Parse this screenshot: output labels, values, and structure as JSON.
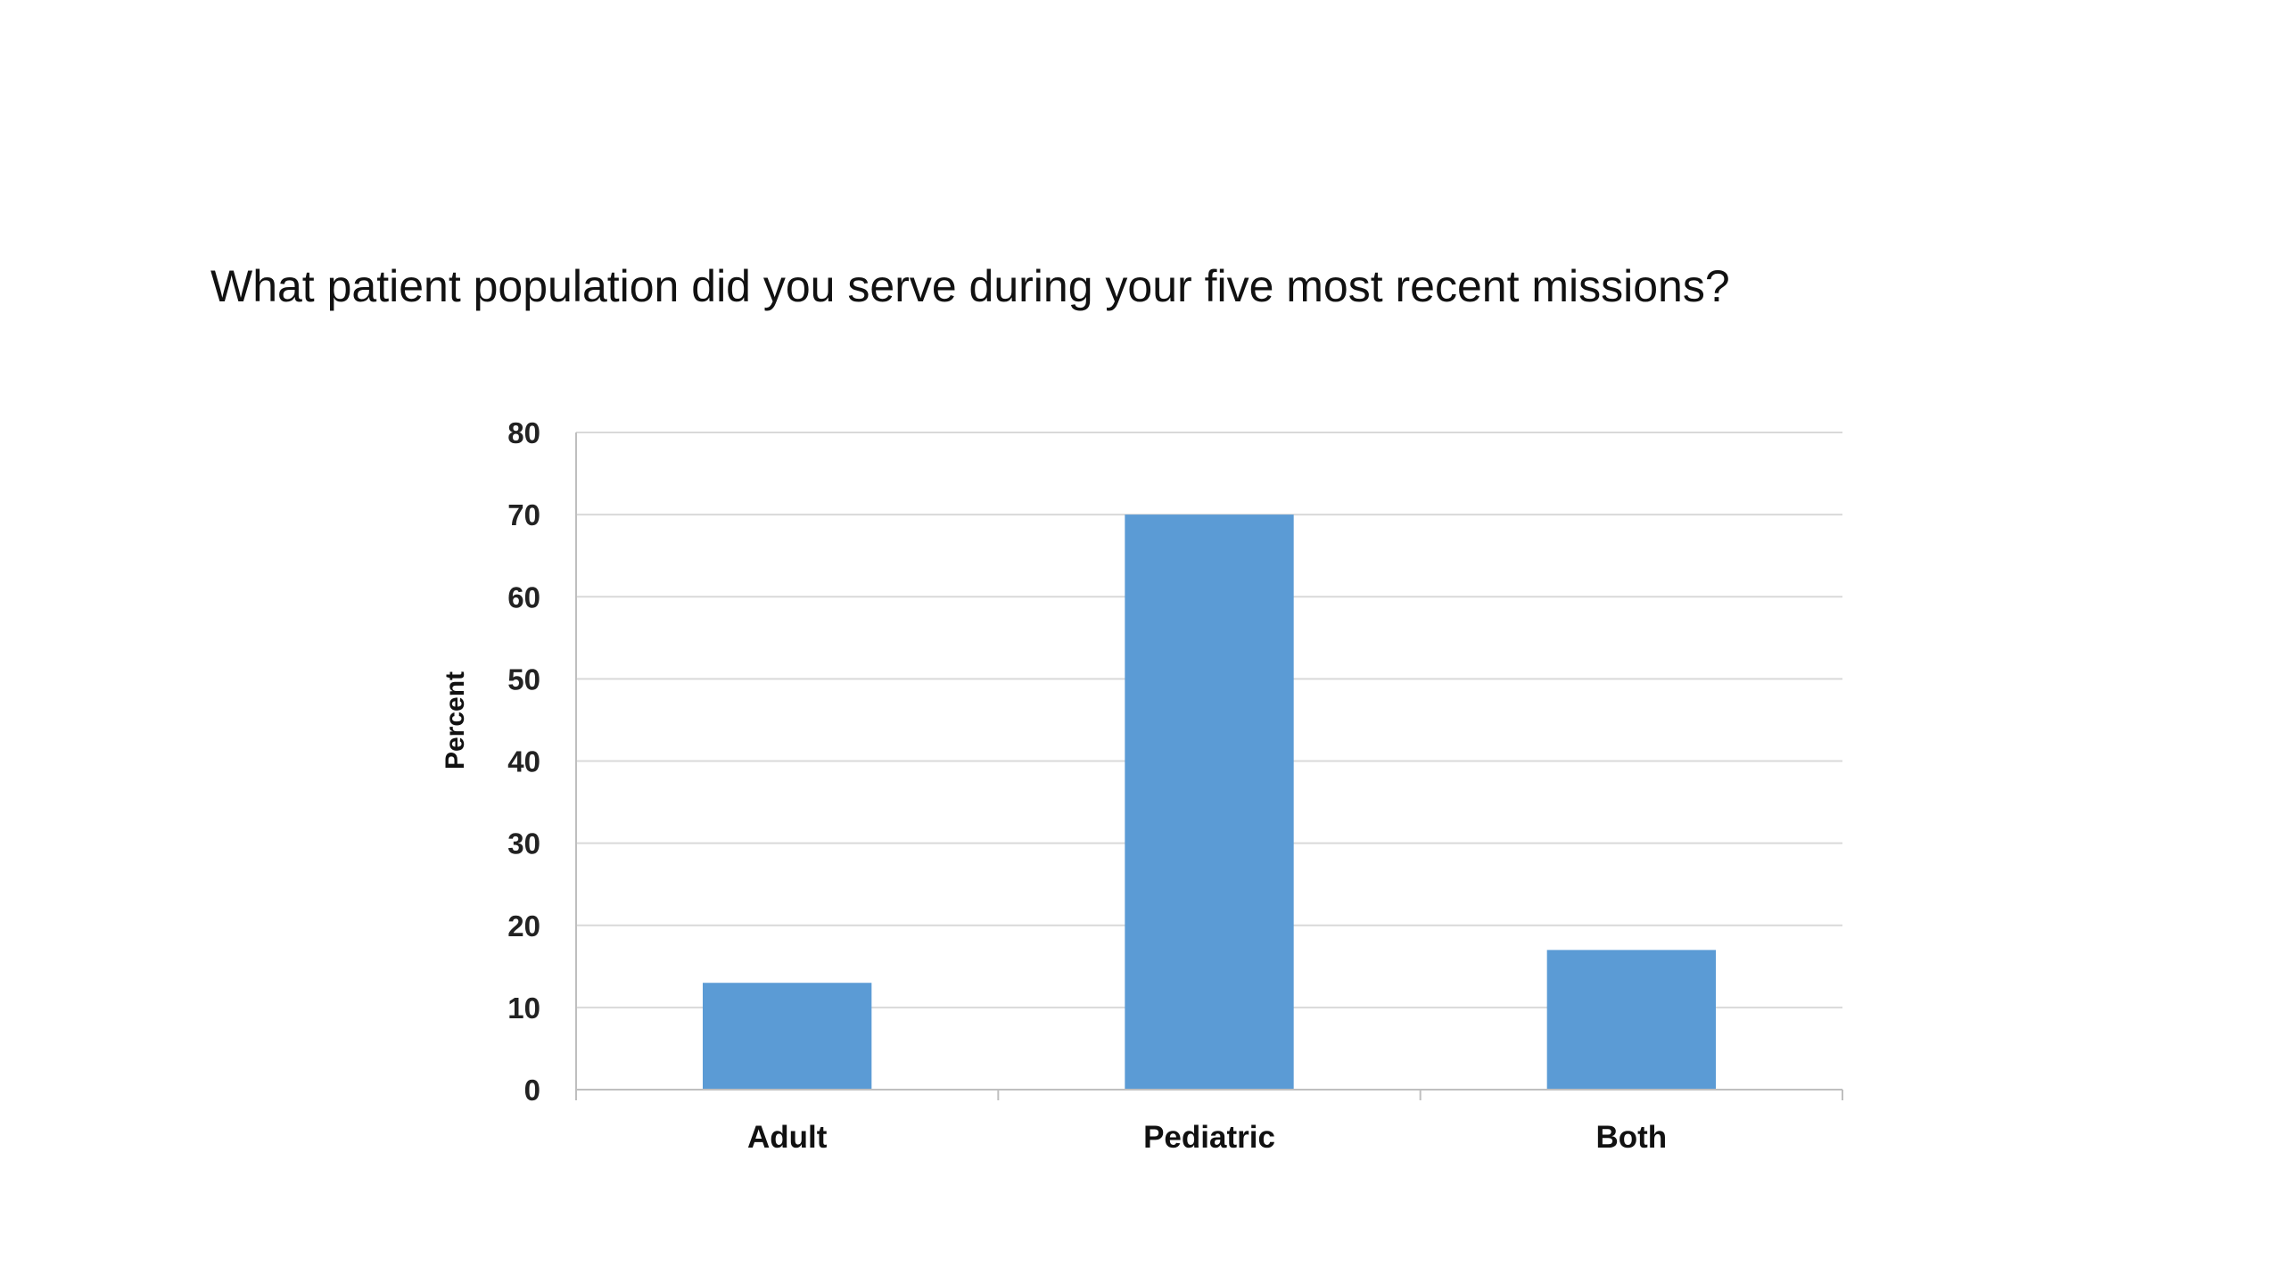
{
  "slide": {
    "title": "What patient population did you serve during your five most recent missions?"
  },
  "chart_data": {
    "type": "bar",
    "title": "",
    "xlabel": "",
    "ylabel": "Percent",
    "categories": [
      "Adult",
      "Pediatric",
      "Both"
    ],
    "values": [
      13,
      70,
      17
    ],
    "ylim": [
      0,
      80
    ],
    "yticks": [
      0,
      10,
      20,
      30,
      40,
      50,
      60,
      70,
      80
    ],
    "grid": true,
    "legend": "none",
    "colors": {
      "bar": "#5b9bd5",
      "grid": "#d9d9d9",
      "axis": "#bfbfbf"
    }
  }
}
